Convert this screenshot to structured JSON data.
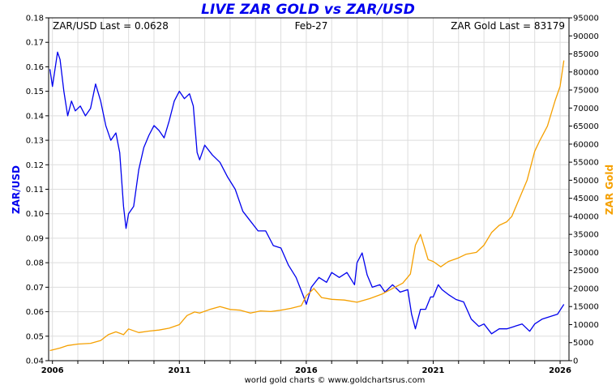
{
  "chart_data": {
    "type": "line",
    "title": "LIVE ZAR GOLD vs ZAR/USD",
    "info_left": "ZAR/USD Last = 0.0628",
    "info_center": "Feb-27",
    "info_right": "ZAR Gold Last = 83179",
    "credit": "world gold charts © www.goldchartsrus.com",
    "ylabel_left": "ZAR/USD",
    "ylabel_right": "ZAR Gold",
    "x_tick_labels": [
      "2006",
      "2011",
      "2016",
      "2021",
      "2026"
    ],
    "x_tick_values": [
      2006,
      2011,
      2016,
      2021,
      2026
    ],
    "xlim": [
      2005.85,
      2026.35
    ],
    "ylim_left": [
      0.04,
      0.18
    ],
    "y_ticks_left": [
      "0.18",
      "0.17",
      "0.16",
      "0.15",
      "0.14",
      "0.13",
      "0.12",
      "0.11",
      "0.10",
      "0.09",
      "0.08",
      "0.07",
      "0.06",
      "0.05",
      "0.04"
    ],
    "ylim_right": [
      0,
      95000
    ],
    "y_ticks_right": [
      "95000",
      "90000",
      "85000",
      "80000",
      "75000",
      "70000",
      "65000",
      "60000",
      "55000",
      "50000",
      "45000",
      "40000",
      "35000",
      "30000",
      "25000",
      "20000",
      "15000",
      "10000",
      "5000",
      "0"
    ],
    "grid": true,
    "colors": {
      "zar_usd": "#0000ee",
      "zar_gold": "#f5a000",
      "title": "#0000ee",
      "grid": "#dddddd"
    },
    "series": [
      {
        "name": "ZAR/USD",
        "axis": "left",
        "x": [
          2005.9,
          2006.0,
          2006.2,
          2006.3,
          2006.45,
          2006.6,
          2006.75,
          2006.9,
          2007.1,
          2007.3,
          2007.5,
          2007.7,
          2007.9,
          2008.1,
          2008.3,
          2008.5,
          2008.65,
          2008.8,
          2008.9,
          2009.0,
          2009.2,
          2009.4,
          2009.6,
          2009.8,
          2010.0,
          2010.2,
          2010.4,
          2010.6,
          2010.8,
          2011.0,
          2011.2,
          2011.4,
          2011.55,
          2011.7,
          2011.8,
          2012.0,
          2012.3,
          2012.6,
          2012.9,
          2013.2,
          2013.5,
          2013.8,
          2014.1,
          2014.4,
          2014.7,
          2015.0,
          2015.3,
          2015.6,
          2015.9,
          2016.0,
          2016.2,
          2016.5,
          2016.8,
          2017.0,
          2017.3,
          2017.6,
          2017.9,
          2018.0,
          2018.2,
          2018.4,
          2018.6,
          2018.9,
          2019.1,
          2019.4,
          2019.7,
          2020.0,
          2020.15,
          2020.3,
          2020.5,
          2020.7,
          2020.9,
          2021.0,
          2021.2,
          2021.35,
          2021.6,
          2021.9,
          2022.2,
          2022.5,
          2022.8,
          2023.0,
          2023.3,
          2023.6,
          2023.9,
          2024.2,
          2024.5,
          2024.8,
          2025.0,
          2025.3,
          2025.6,
          2025.9,
          2026.15
        ],
        "values": [
          0.159,
          0.152,
          0.166,
          0.163,
          0.15,
          0.14,
          0.146,
          0.142,
          0.144,
          0.14,
          0.143,
          0.153,
          0.146,
          0.136,
          0.13,
          0.133,
          0.125,
          0.103,
          0.094,
          0.1,
          0.103,
          0.118,
          0.127,
          0.132,
          0.136,
          0.134,
          0.131,
          0.138,
          0.146,
          0.15,
          0.147,
          0.149,
          0.144,
          0.125,
          0.122,
          0.128,
          0.124,
          0.121,
          0.115,
          0.11,
          0.101,
          0.097,
          0.093,
          0.093,
          0.087,
          0.086,
          0.079,
          0.074,
          0.066,
          0.063,
          0.07,
          0.074,
          0.072,
          0.076,
          0.074,
          0.076,
          0.071,
          0.08,
          0.084,
          0.075,
          0.07,
          0.071,
          0.068,
          0.071,
          0.068,
          0.069,
          0.059,
          0.053,
          0.061,
          0.061,
          0.066,
          0.066,
          0.071,
          0.069,
          0.067,
          0.065,
          0.064,
          0.057,
          0.054,
          0.055,
          0.051,
          0.053,
          0.053,
          0.054,
          0.055,
          0.052,
          0.055,
          0.057,
          0.058,
          0.059,
          0.063
        ]
      },
      {
        "name": "ZAR Gold",
        "axis": "right",
        "x": [
          2005.9,
          2006.3,
          2006.6,
          2007.0,
          2007.5,
          2007.9,
          2008.2,
          2008.5,
          2008.8,
          2009.0,
          2009.4,
          2009.8,
          2010.2,
          2010.6,
          2011.0,
          2011.3,
          2011.6,
          2011.8,
          2012.2,
          2012.6,
          2013.0,
          2013.4,
          2013.8,
          2014.2,
          2014.6,
          2015.0,
          2015.4,
          2015.8,
          2016.0,
          2016.3,
          2016.6,
          2017.0,
          2017.5,
          2018.0,
          2018.5,
          2019.0,
          2019.4,
          2019.8,
          2020.1,
          2020.3,
          2020.5,
          2020.8,
          2021.0,
          2021.3,
          2021.6,
          2022.0,
          2022.3,
          2022.7,
          2023.0,
          2023.3,
          2023.6,
          2023.9,
          2024.1,
          2024.4,
          2024.7,
          2025.0,
          2025.2,
          2025.5,
          2025.8,
          2026.0,
          2026.15
        ],
        "values": [
          2800,
          3500,
          4200,
          4600,
          4800,
          5600,
          7200,
          8000,
          7200,
          8800,
          7800,
          8200,
          8500,
          9000,
          10000,
          12500,
          13500,
          13200,
          14200,
          15000,
          14200,
          14000,
          13200,
          13800,
          13600,
          14000,
          14500,
          15200,
          18000,
          20000,
          17500,
          17000,
          16800,
          16200,
          17200,
          18500,
          20000,
          21500,
          24000,
          32000,
          35000,
          28000,
          27500,
          26000,
          27500,
          28500,
          29500,
          30000,
          32000,
          35500,
          37500,
          38500,
          40000,
          45000,
          50000,
          58000,
          61000,
          65000,
          72000,
          76000,
          83179
        ]
      }
    ]
  }
}
